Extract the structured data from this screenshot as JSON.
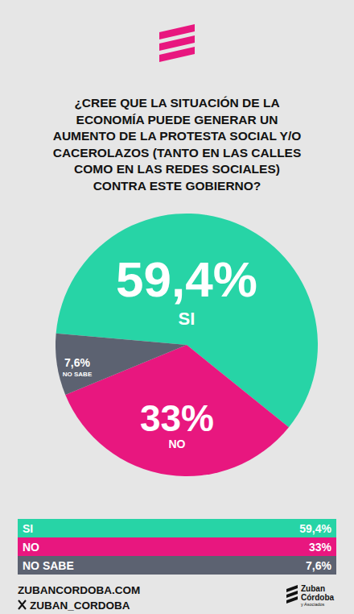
{
  "chart_data": {
    "type": "pie",
    "title": "¿CREE QUE LA SITUACIÓN DE LA ECONOMÍA PUEDE GENERAR UN AUMENTO DE LA PROTESTA SOCIAL Y/O CACEROLAZOS (TANTO EN LAS CALLES COMO EN LAS REDES SOCIALES) CONTRA ESTE GOBIERNO?",
    "categories": [
      "SI",
      "NO",
      "NO SABE"
    ],
    "values": [
      59.4,
      33,
      7.6
    ],
    "value_labels": [
      "59,4%",
      "33%",
      "7,6%"
    ],
    "colors": [
      "#27d4a6",
      "#e8177f",
      "#5c6271"
    ],
    "data_labels": true
  },
  "footer": {
    "website": "ZUBANCORDOBA.COM",
    "social": "ZUBAN_CORDOBA",
    "brand": [
      "Zuban",
      "Córdoba",
      "y Asociados"
    ]
  }
}
